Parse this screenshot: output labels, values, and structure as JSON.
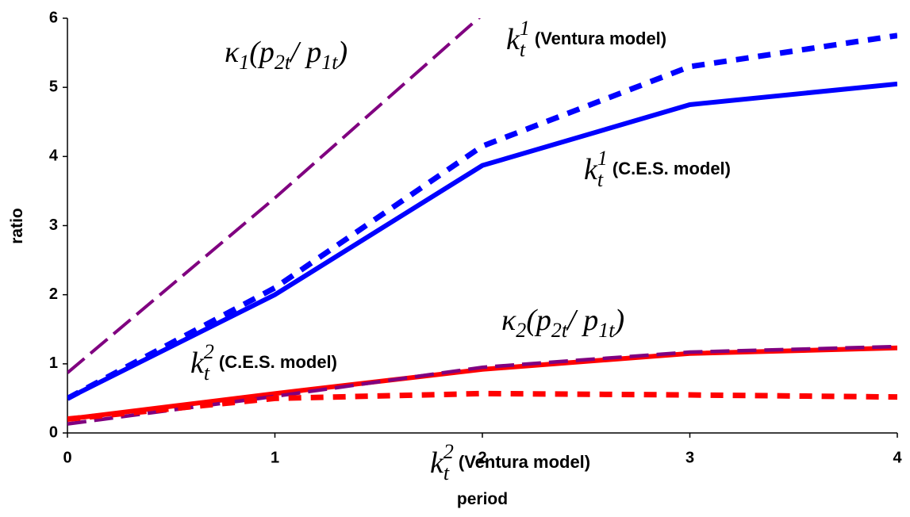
{
  "chart_data": {
    "type": "line",
    "x_label": "period",
    "y_label": "ratio",
    "x": [
      0,
      1,
      2,
      3,
      4
    ],
    "xlim": [
      0,
      4
    ],
    "xticks": [
      0,
      1,
      2,
      3,
      4
    ],
    "ylim": [
      0,
      6
    ],
    "yticks": [
      0,
      1,
      2,
      3,
      4,
      5,
      6
    ],
    "series": [
      {
        "color": "#800080",
        "style": "longdash",
        "values": [
          0.87,
          3.4,
          6.05,
          null,
          null
        ]
      },
      {
        "color": "#0000ff",
        "style": "dot",
        "values": [
          0.5,
          2.1,
          4.15,
          5.3,
          5.75
        ]
      },
      {
        "color": "#0000ff",
        "style": "solid",
        "values": [
          0.5,
          2.0,
          3.87,
          4.75,
          5.05
        ]
      },
      {
        "color": "#ff0000",
        "style": "solid",
        "values": [
          0.2,
          0.57,
          0.92,
          1.15,
          1.23
        ]
      },
      {
        "color": "#800080",
        "style": "dash",
        "values": [
          0.13,
          0.53,
          0.95,
          1.17,
          1.25
        ]
      },
      {
        "color": "#ff0000",
        "style": "dot",
        "values": [
          0.2,
          0.5,
          0.57,
          0.55,
          0.52
        ]
      }
    ],
    "annotations": [
      {
        "parts": [
          {
            "t": "κ",
            "s": "n"
          },
          {
            "t": "1",
            "s": "sub"
          },
          {
            "t": "(p",
            "s": "n"
          },
          {
            "t": "2t",
            "s": "sub"
          },
          {
            "t": " / p",
            "s": "n"
          },
          {
            "t": "1t",
            "s": "sub"
          },
          {
            "t": ")",
            "s": "n"
          }
        ]
      },
      {
        "parts": [
          {
            "t": "k",
            "s": "n"
          },
          {
            "t": "t",
            "s": "sub"
          },
          {
            "t": "1",
            "s": "sup"
          },
          {
            "t": "(Ventura model)",
            "s": "b"
          }
        ]
      },
      {
        "parts": [
          {
            "t": "k",
            "s": "n"
          },
          {
            "t": "t",
            "s": "sub"
          },
          {
            "t": "1",
            "s": "sup"
          },
          {
            "t": "(C.E.S. model)",
            "s": "b"
          }
        ]
      },
      {
        "parts": [
          {
            "t": "k",
            "s": "n"
          },
          {
            "t": "t",
            "s": "sub"
          },
          {
            "t": "2",
            "s": "sup"
          },
          {
            "t": "(C.E.S. model)",
            "s": "b"
          }
        ]
      },
      {
        "parts": [
          {
            "t": "κ",
            "s": "n"
          },
          {
            "t": "2",
            "s": "sub"
          },
          {
            "t": "(p",
            "s": "n"
          },
          {
            "t": "2t",
            "s": "sub"
          },
          {
            "t": " / p",
            "s": "n"
          },
          {
            "t": "1t",
            "s": "sub"
          },
          {
            "t": ")",
            "s": "n"
          }
        ]
      },
      {
        "parts": [
          {
            "t": "k",
            "s": "n"
          },
          {
            "t": "t",
            "s": "sub"
          },
          {
            "t": "2",
            "s": "sup"
          },
          {
            "t": "(Ventura model)",
            "s": "b"
          }
        ]
      }
    ]
  }
}
